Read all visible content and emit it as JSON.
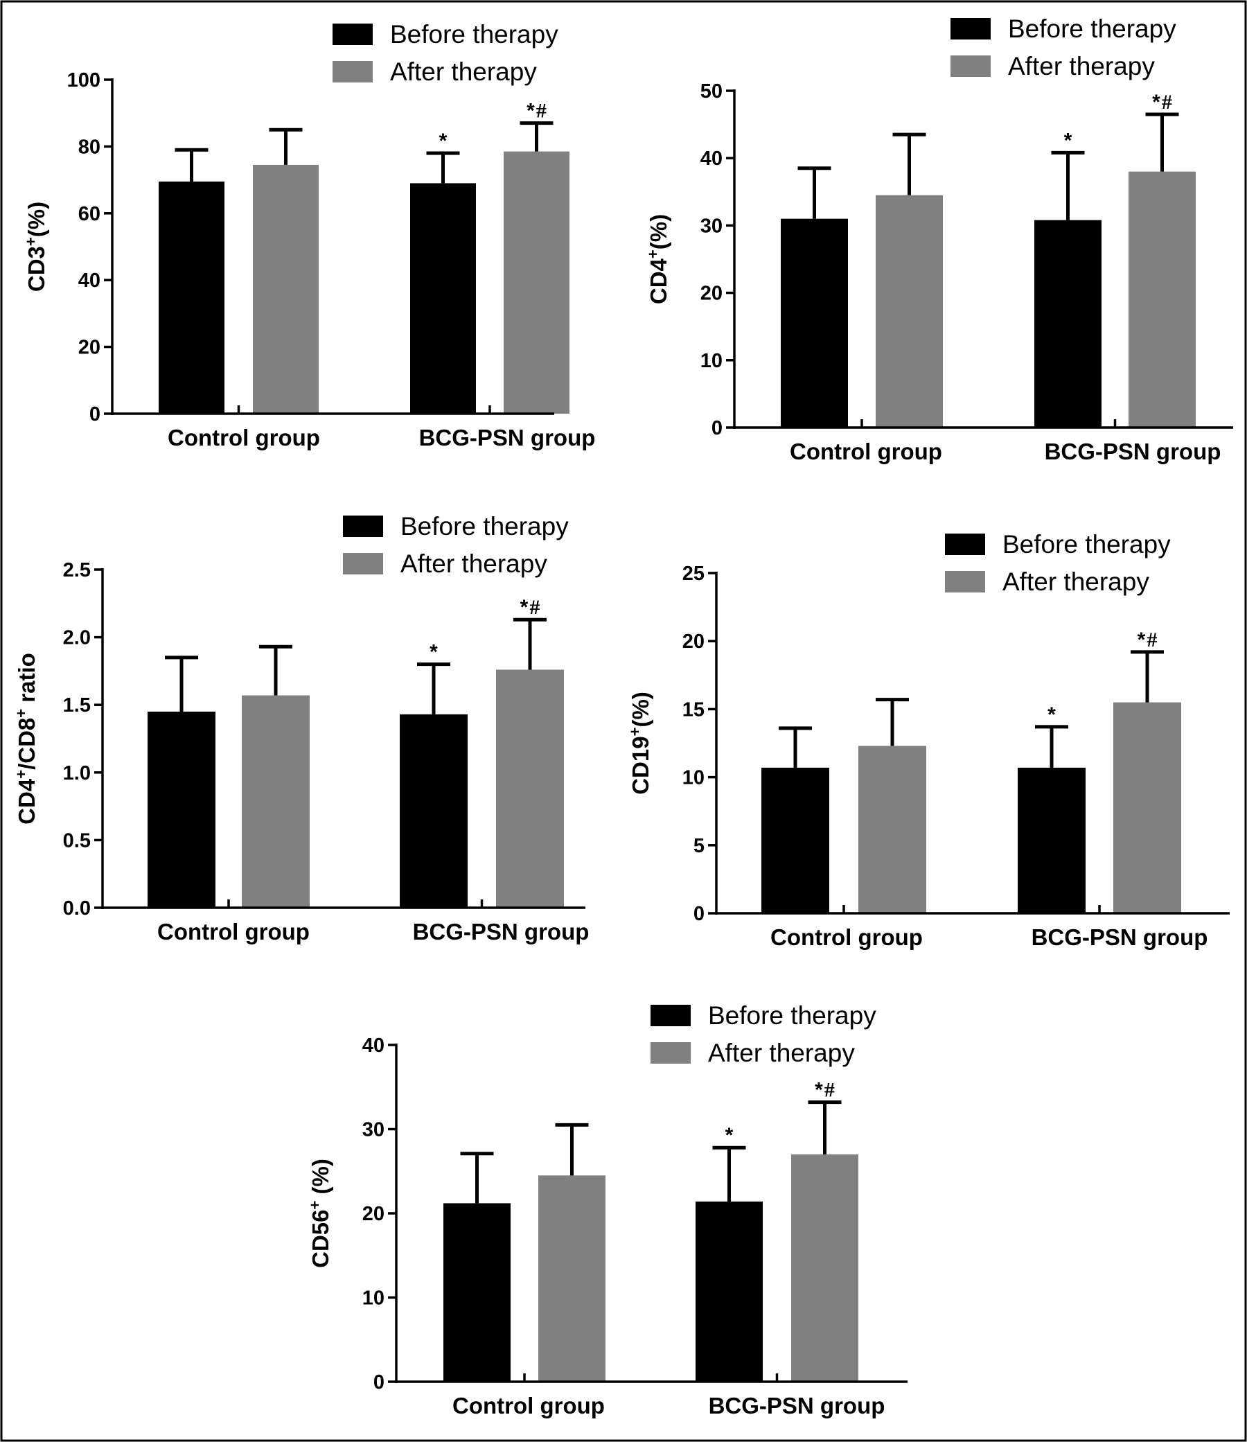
{
  "chart_data": [
    {
      "type": "bar",
      "panel": "CD3",
      "ylabel": {
        "base": "CD3",
        "sup": "+",
        "suffix": "(%)"
      },
      "categories": [
        "Control group",
        "BCG-PSN group"
      ],
      "series": [
        {
          "name": "Before therapy",
          "values": [
            69.5,
            69
          ],
          "errors": [
            9.5,
            9
          ]
        },
        {
          "name": "After therapy",
          "values": [
            74.5,
            78.5
          ],
          "errors": [
            10.5,
            8.5
          ]
        }
      ],
      "ylim": [
        0,
        100
      ],
      "yticks": [
        0,
        20,
        40,
        60,
        80,
        100
      ],
      "annotations": [
        [
          "",
          ""
        ],
        [
          "*",
          "*#"
        ]
      ]
    },
    {
      "type": "bar",
      "panel": "CD4",
      "ylabel": {
        "base": "CD4",
        "sup": "+",
        "suffix": "(%)"
      },
      "categories": [
        "Control group",
        "BCG-PSN group"
      ],
      "series": [
        {
          "name": "Before therapy",
          "values": [
            31,
            30.8
          ],
          "errors": [
            7.5,
            10
          ]
        },
        {
          "name": "After therapy",
          "values": [
            34.5,
            38
          ],
          "errors": [
            9,
            8.5
          ]
        }
      ],
      "ylim": [
        0,
        50
      ],
      "yticks": [
        0,
        10,
        20,
        30,
        40,
        50
      ],
      "annotations": [
        [
          "",
          ""
        ],
        [
          "*",
          "*#"
        ]
      ]
    },
    {
      "type": "bar",
      "panel": "CD4/CD8 ratio",
      "ylabel": {
        "parts": [
          {
            "t": "CD4"
          },
          {
            "t": "+",
            "sup": true
          },
          {
            "t": "/CD8"
          },
          {
            "t": "+",
            "sup": true
          },
          {
            "t": " ratio"
          }
        ]
      },
      "categories": [
        "Control group",
        "BCG-PSN group"
      ],
      "series": [
        {
          "name": "Before therapy",
          "values": [
            1.45,
            1.43
          ],
          "errors": [
            0.4,
            0.37
          ]
        },
        {
          "name": "After therapy",
          "values": [
            1.57,
            1.76
          ],
          "errors": [
            0.36,
            0.37
          ]
        }
      ],
      "ylim": [
        0,
        2.5
      ],
      "yticks": [
        "0.0",
        "0.5",
        "1.0",
        "1.5",
        "2.0",
        "2.5"
      ],
      "annotations": [
        [
          "",
          ""
        ],
        [
          "*",
          "*#"
        ]
      ]
    },
    {
      "type": "bar",
      "panel": "CD19",
      "ylabel": {
        "base": "CD19",
        "sup": "+",
        "suffix": "(%)"
      },
      "categories": [
        "Control group",
        "BCG-PSN group"
      ],
      "series": [
        {
          "name": "Before therapy",
          "values": [
            10.7,
            10.7
          ],
          "errors": [
            2.9,
            3
          ]
        },
        {
          "name": "After therapy",
          "values": [
            12.3,
            15.5
          ],
          "errors": [
            3.4,
            3.7
          ]
        }
      ],
      "ylim": [
        0,
        25
      ],
      "yticks": [
        0,
        5,
        10,
        15,
        20,
        25
      ],
      "annotations": [
        [
          "",
          ""
        ],
        [
          "*",
          "*#"
        ]
      ]
    },
    {
      "type": "bar",
      "panel": "CD56",
      "ylabel": {
        "base": "CD56",
        "sup": "+",
        "suffix": " (%)"
      },
      "categories": [
        "Control group",
        "BCG-PSN group"
      ],
      "series": [
        {
          "name": "Before therapy",
          "values": [
            21.2,
            21.4
          ],
          "errors": [
            5.9,
            6.4
          ]
        },
        {
          "name": "After therapy",
          "values": [
            24.5,
            27
          ],
          "errors": [
            6,
            6.2
          ]
        }
      ],
      "ylim": [
        0,
        40
      ],
      "yticks": [
        0,
        10,
        20,
        30,
        40
      ],
      "annotations": [
        [
          "",
          ""
        ],
        [
          "*",
          "*#"
        ]
      ]
    }
  ],
  "colors": {
    "before": "#000000",
    "after": "#808080",
    "frame": "#000000"
  }
}
